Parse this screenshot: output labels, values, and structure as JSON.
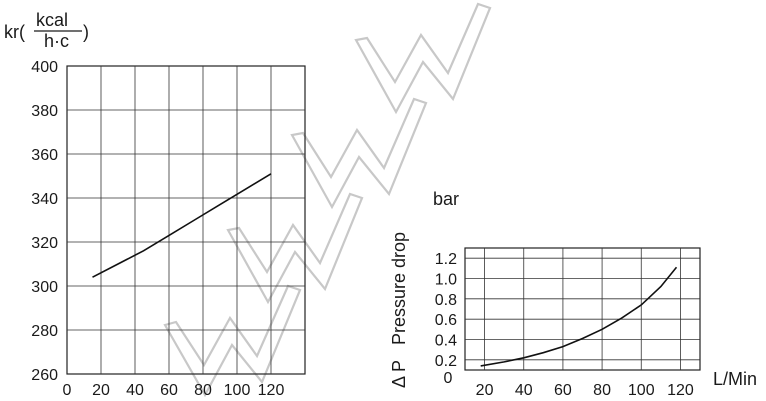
{
  "chart_data": [
    {
      "type": "line",
      "ylabel_prefix": "kr(",
      "ylabel_frac_top": "kcal",
      "ylabel_frac_bottom": "h·c",
      "ylabel_suffix": ")",
      "xlabel": "",
      "x_ticks": [
        20,
        40,
        60,
        80,
        100,
        120
      ],
      "x_zero_label": "0",
      "y_ticks": [
        260,
        280,
        300,
        320,
        340,
        360,
        380,
        400
      ],
      "xlim": [
        0,
        140
      ],
      "ylim": [
        260,
        400
      ],
      "grid": true,
      "series": [
        {
          "x": [
            15,
            30,
            45,
            60,
            75,
            90,
            105,
            120
          ],
          "y": [
            304,
            310,
            316,
            323,
            330,
            337,
            344,
            351
          ]
        }
      ]
    },
    {
      "type": "line",
      "unit_label": "bar",
      "ylabel": "Pressure drop",
      "ylabel_symbol": "Δ P",
      "xlabel": "L/Min",
      "x_ticks": [
        20,
        40,
        60,
        80,
        100,
        120
      ],
      "y_ticks": [
        0.2,
        0.4,
        0.6,
        0.8,
        1.0,
        1.2
      ],
      "y_tick_labels": [
        "0.2",
        "0.4",
        "0.6",
        "0.8",
        "1.0",
        "1.2"
      ],
      "y_zero_label": "0",
      "xlim": [
        10,
        130
      ],
      "ylim": [
        0.1,
        1.3
      ],
      "grid": true,
      "series": [
        {
          "x": [
            18,
            30,
            40,
            50,
            60,
            70,
            80,
            90,
            100,
            110,
            118
          ],
          "y": [
            0.14,
            0.18,
            0.22,
            0.27,
            0.33,
            0.41,
            0.5,
            0.61,
            0.74,
            0.92,
            1.11
          ]
        }
      ]
    }
  ]
}
